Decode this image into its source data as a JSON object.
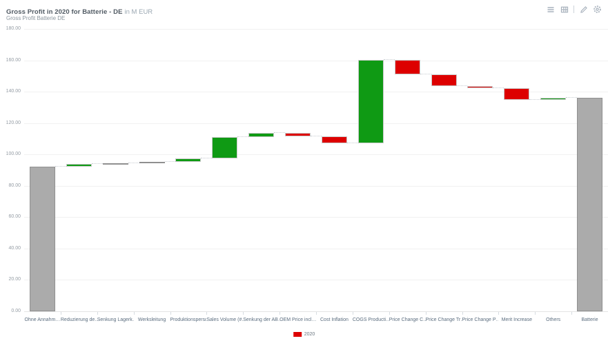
{
  "header": {
    "title": "Gross Profit in 2020 for Batterie - DE",
    "title_suffix": "in M EUR",
    "subtitle": "Gross Profit Batterie DE",
    "toolbar_icons": [
      "menu-icon",
      "table-icon",
      "edit-icon",
      "settings-icon"
    ]
  },
  "legend": {
    "label": "2020",
    "color": "#dd0000"
  },
  "colors": {
    "increase": "#0f9a14",
    "decrease": "#dd0000",
    "total": "#ababab",
    "neutral": "#ababab",
    "gridline": "#f1f1f1",
    "axis_text": "#949ca4",
    "category_text": "#5a6c7e"
  },
  "chart_data": {
    "type": "waterfall",
    "title": "Gross Profit in 2020 for Batterie - DE in M EUR",
    "subtitle": "Gross Profit Batterie DE",
    "series_name": "2020",
    "ylim": [
      0,
      180
    ],
    "ytick_step": 20,
    "ytick_format_decimals": 2,
    "grid": true,
    "legend_position": "bottom",
    "bars": [
      {
        "category": "Ohne Annahm…",
        "kind": "total",
        "value": 92,
        "cumulative": 92
      },
      {
        "category": "Reduzierung de…",
        "kind": "increase",
        "value": 2,
        "cumulative": 94
      },
      {
        "category": "Senkung Lagerk…",
        "kind": "neutral",
        "value": 0.3,
        "cumulative": 94.3
      },
      {
        "category": "Werksleitung",
        "kind": "neutral",
        "value": 0.9,
        "cumulative": 95.2
      },
      {
        "category": "Produktionsperson…",
        "kind": "increase",
        "value": 2.2,
        "cumulative": 97.4
      },
      {
        "category": "Sales Volume (#…",
        "kind": "increase",
        "value": 13.5,
        "cumulative": 110.9
      },
      {
        "category": "Senkung der AB…",
        "kind": "increase",
        "value": 3,
        "cumulative": 113.9
      },
      {
        "category": "OEM Price incl…",
        "kind": "decrease",
        "value": -2.2,
        "cumulative": 111.7
      },
      {
        "category": "Cost Inflation",
        "kind": "decrease",
        "value": -4.6,
        "cumulative": 107.1
      },
      {
        "category": "COGS Producti…",
        "kind": "increase",
        "value": 53.2,
        "cumulative": 160.3
      },
      {
        "category": "Price Change C…",
        "kind": "decrease",
        "value": -9.2,
        "cumulative": 151.1
      },
      {
        "category": "Price Change Tr…",
        "kind": "decrease",
        "value": -7.6,
        "cumulative": 143.5
      },
      {
        "category": "Price Change P…",
        "kind": "decrease",
        "value": -1.4,
        "cumulative": 142.1
      },
      {
        "category": "Merit Increase",
        "kind": "decrease",
        "value": -7.5,
        "cumulative": 134.6
      },
      {
        "category": "Others",
        "kind": "increase",
        "value": 1.7,
        "cumulative": 136.3
      },
      {
        "category": "Batterie",
        "kind": "total",
        "value": 136.3,
        "cumulative": 136.3
      }
    ]
  }
}
